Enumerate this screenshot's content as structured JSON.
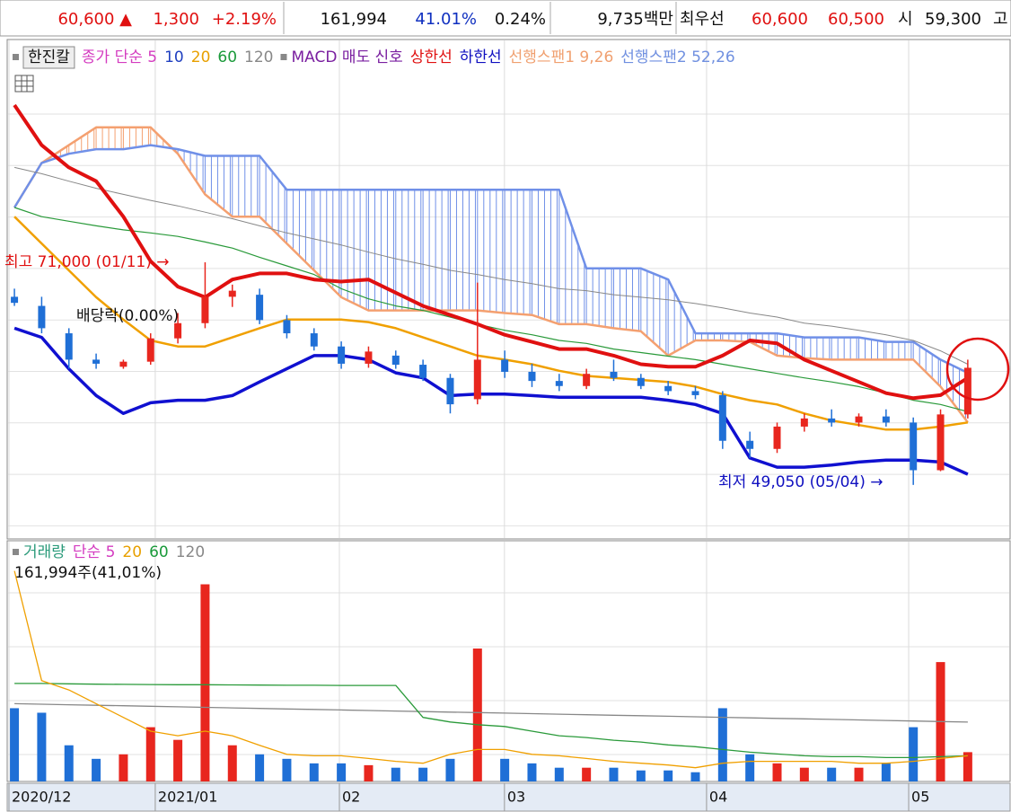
{
  "header": {
    "items": [
      {
        "text": "60,600 ▲",
        "color": "#e01010"
      },
      {
        "text": "1,300",
        "color": "#e01010"
      },
      {
        "text": "+2.19%",
        "color": "#e01010"
      },
      {
        "text": "161,994",
        "color": "#111111"
      },
      {
        "text": "41.01%",
        "color": "#1030c0"
      },
      {
        "text": "0.24%",
        "color": "#111111"
      },
      {
        "text": "9,735백만",
        "color": "#111111"
      },
      {
        "text": "최우선",
        "color": "#111111"
      },
      {
        "text": "60,600",
        "color": "#e01010"
      },
      {
        "text": "60,500",
        "color": "#e01010"
      },
      {
        "text": "시",
        "color": "#111111"
      },
      {
        "text": "59,300",
        "color": "#111111"
      },
      {
        "text": "고",
        "color": "#111111"
      }
    ]
  },
  "chart_data": [
    {
      "type": "candlestick",
      "legend": [
        {
          "text": "한진칼",
          "color": "#111111",
          "box": true,
          "button": true
        },
        {
          "text": "종가 단순 5",
          "color": "#d43cc0"
        },
        {
          "text": "10",
          "color": "#1f3fc0"
        },
        {
          "text": "20",
          "color": "#e8a000"
        },
        {
          "text": "60",
          "color": "#1a9a3a"
        },
        {
          "text": "120",
          "color": "#888888"
        },
        {
          "text": "MACD 매도 신호",
          "color": "#7a1fa0",
          "box": true
        },
        {
          "text": "상한선",
          "color": "#e01010"
        },
        {
          "text": "하한선",
          "color": "#1010c0"
        },
        {
          "text": "선행스팬1 9,26",
          "color": "#f0a070"
        },
        {
          "text": "선행스팬2 52,26",
          "color": "#7090e0"
        }
      ],
      "annotations": [
        "최고 71,000 (01/11) →",
        "배당락(0.00%)",
        "최저 49,050 (05/04) →"
      ],
      "categories": [
        null,
        null,
        null,
        null,
        null,
        null,
        null,
        null,
        null,
        null,
        null,
        null,
        null,
        null,
        null,
        null,
        null,
        null,
        null,
        null,
        null,
        null,
        null,
        null,
        null,
        null,
        null,
        null,
        null,
        null,
        null,
        null,
        null,
        null,
        null,
        null
      ],
      "open": [
        67600,
        66700,
        64000,
        61400,
        60700,
        61200,
        63500,
        65000,
        67600,
        67800,
        65300,
        64000,
        62700,
        61000,
        61800,
        60900,
        59600,
        57500,
        61400,
        60200,
        59300,
        58800,
        60200,
        59600,
        58800,
        58300,
        57900,
        53400,
        52600,
        54800,
        55600,
        55200,
        55800,
        55200,
        50500,
        56000
      ],
      "high": [
        68400,
        67600,
        64500,
        62000,
        61400,
        64000,
        66000,
        71000,
        68800,
        68400,
        65800,
        64500,
        63200,
        62700,
        62300,
        61400,
        60000,
        69000,
        62300,
        61000,
        60000,
        60500,
        61400,
        60000,
        59300,
        58800,
        58300,
        54300,
        55200,
        56100,
        56500,
        56100,
        56500,
        55700,
        56500,
        61400
      ],
      "low": [
        66700,
        64000,
        60500,
        60500,
        60500,
        60900,
        63000,
        64500,
        66600,
        64900,
        63500,
        62300,
        60500,
        60600,
        60500,
        59300,
        56100,
        57000,
        59600,
        58700,
        58300,
        58500,
        59300,
        58500,
        57900,
        57500,
        52600,
        51700,
        52200,
        54300,
        54800,
        54800,
        54800,
        49050,
        50400,
        55600
      ],
      "close": [
        67000,
        64500,
        61400,
        61000,
        61200,
        63500,
        65000,
        67600,
        68200,
        65300,
        64000,
        62700,
        61000,
        62200,
        60900,
        59600,
        57000,
        61400,
        60200,
        59300,
        58800,
        60000,
        59600,
        58800,
        58300,
        57900,
        53400,
        52600,
        54800,
        55600,
        55200,
        55800,
        55200,
        50500,
        56000,
        60600
      ],
      "up_color": "#e8261e",
      "down_color": "#1f6fd6",
      "series": [
        {
          "color": "#f4a070",
          "values": [
            76400,
            80800,
            82550,
            84300,
            84300,
            84300,
            81700,
            77700,
            75500,
            75500,
            72850,
            70200,
            67560,
            66250,
            66250,
            66250,
            66250,
            66250,
            66000,
            65800,
            64900,
            64900,
            64500,
            64200,
            61800,
            63300,
            63300,
            63150,
            61800,
            61550,
            61400,
            61400,
            61400,
            61400,
            58740,
            55210
          ]
        },
        {
          "color": "#7090e8",
          "values": [
            76400,
            80800,
            81700,
            82150,
            82150,
            82550,
            82150,
            81500,
            81500,
            81500,
            78150,
            78150,
            78150,
            78150,
            78150,
            78150,
            78150,
            78150,
            78150,
            78150,
            78150,
            70400,
            70400,
            70400,
            69300,
            64000,
            64000,
            64000,
            64000,
            63600,
            63600,
            63600,
            63150,
            63150,
            61400,
            60100
          ]
        },
        {
          "color": "#888888",
          "values": [
            80350,
            79730,
            79000,
            78300,
            77700,
            77100,
            76560,
            75940,
            75300,
            74600,
            73900,
            73300,
            72700,
            72000,
            71350,
            70800,
            70200,
            69800,
            69300,
            68900,
            68400,
            68200,
            67800,
            67560,
            67300,
            66940,
            66500,
            66000,
            65600,
            65000,
            64700,
            64300,
            63850,
            63300,
            62270,
            60950
          ]
        },
        {
          "color": "#2a9a3a",
          "values": [
            76400,
            75500,
            75050,
            74600,
            74200,
            73900,
            73550,
            73000,
            72400,
            71500,
            70650,
            69800,
            68400,
            67400,
            66700,
            66250,
            65600,
            64900,
            64300,
            63850,
            63300,
            63000,
            62450,
            62100,
            61750,
            61400,
            60950,
            60500,
            60050,
            59600,
            59200,
            58740,
            58100,
            57400,
            56980,
            56270
          ]
        },
        {
          "color": "#f0a000",
          "values": [
            75500,
            72850,
            70200,
            67560,
            65350,
            63300,
            62700,
            62700,
            63600,
            64500,
            65350,
            65350,
            65350,
            65100,
            64500,
            63600,
            62700,
            61800,
            61400,
            60950,
            60300,
            59800,
            59600,
            59400,
            59200,
            58740,
            58000,
            57400,
            56980,
            56100,
            55400,
            54950,
            54500,
            54500,
            54800,
            55210
          ]
        },
        {
          "color": "#e01010",
          "values": [
            86500,
            82550,
            80350,
            79000,
            75500,
            71100,
            68600,
            67560,
            69300,
            69900,
            69900,
            69300,
            69100,
            69300,
            68000,
            66700,
            65800,
            64900,
            63850,
            63150,
            62450,
            62450,
            61800,
            60950,
            60700,
            60700,
            61800,
            63300,
            63000,
            61400,
            60300,
            59200,
            58100,
            57600,
            57900,
            59600
          ]
        },
        {
          "color": "#1010d0",
          "values": [
            64500,
            63600,
            60500,
            57860,
            56100,
            57150,
            57400,
            57400,
            57860,
            59200,
            60500,
            61800,
            61800,
            61400,
            60100,
            59600,
            57860,
            58000,
            58000,
            57860,
            57700,
            57700,
            57700,
            57700,
            57400,
            56980,
            56100,
            51700,
            50800,
            50800,
            51000,
            51300,
            51500,
            51500,
            51300,
            50100
          ]
        }
      ],
      "ylim": [
        43900,
        92700
      ]
    },
    {
      "type": "bar",
      "legend": [
        {
          "text": "거래량",
          "color": "#2a9a7a",
          "box": true
        },
        {
          "text": "단순 5",
          "color": "#d43cc0"
        },
        {
          "text": "20",
          "color": "#e8a000"
        },
        {
          "text": "60",
          "color": "#1a9a3a"
        },
        {
          "text": "120",
          "color": "#888888"
        }
      ],
      "subtitle": "161,994주(41,01%)",
      "values": [
        405000,
        380000,
        200000,
        125000,
        150000,
        300000,
        230000,
        1090000,
        200000,
        150000,
        125000,
        100000,
        100000,
        90000,
        76000,
        76000,
        125000,
        735000,
        125000,
        100000,
        76000,
        76000,
        76000,
        61000,
        61000,
        51000,
        405000,
        150000,
        100000,
        76000,
        76000,
        76000,
        100000,
        300000,
        660000,
        161994
      ],
      "series": [
        {
          "color": "#888888",
          "values": [
            430000,
            427100,
            424200,
            421300,
            418400,
            415500,
            412600,
            409700,
            406800,
            403900,
            401000,
            398100,
            395200,
            392300,
            389400,
            386500,
            383600,
            380700,
            377800,
            374900,
            372000,
            369100,
            366200,
            363300,
            360400,
            357500,
            354600,
            351700,
            348800,
            345900,
            343000,
            340100,
            337200,
            334300,
            331400,
            328500
          ]
        },
        {
          "color": "#2a9a3a",
          "values": [
            542000,
            542000,
            540000,
            538000,
            537000,
            536000,
            535000,
            535000,
            534000,
            533000,
            532000,
            532000,
            531000,
            531000,
            531000,
            354000,
            329000,
            314000,
            304000,
            278000,
            253000,
            243000,
            228000,
            218000,
            202000,
            192000,
            177000,
            162000,
            152000,
            142000,
            137000,
            137000,
            132000,
            132000,
            137000,
            142000
          ]
        },
        {
          "color": "#f0a000",
          "values": [
            1164000,
            557000,
            506000,
            430000,
            354000,
            278000,
            253000,
            278000,
            253000,
            200000,
            150000,
            142000,
            142000,
            127000,
            111000,
            101000,
            150000,
            177000,
            177000,
            150000,
            142000,
            127000,
            111000,
            101000,
            91000,
            76000,
            101000,
            111000,
            111000,
            111000,
            111000,
            101000,
            101000,
            111000,
            127000,
            142000
          ]
        }
      ],
      "ylim": [
        0,
        1316000
      ],
      "xlim": [
        -0.2,
        35.4
      ],
      "xticks": [
        {
          "value": -0.2,
          "label": "2020/12"
        },
        {
          "value": 5.17,
          "label": "2021/01"
        },
        {
          "value": 11.93,
          "label": "02"
        },
        {
          "value": 17.99,
          "label": "03"
        },
        {
          "value": 25.41,
          "label": "04"
        },
        {
          "value": 32.83,
          "label": "05"
        }
      ]
    }
  ]
}
